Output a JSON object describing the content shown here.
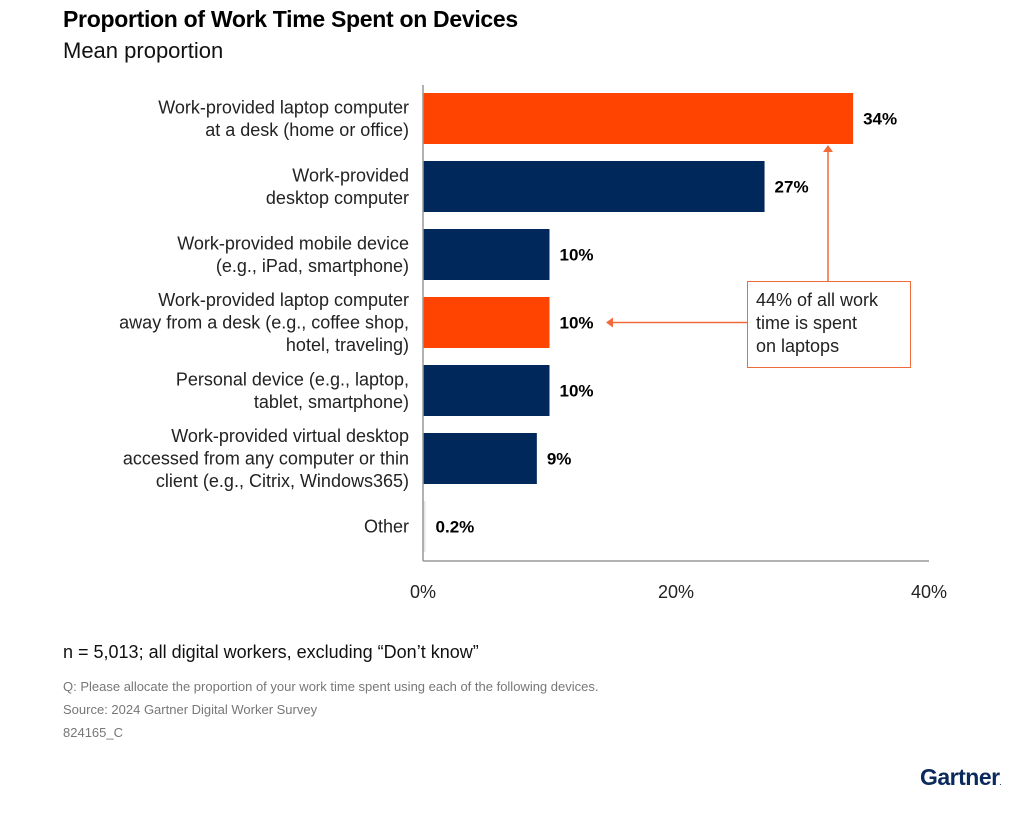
{
  "header": {
    "title": "Proportion of Work Time Spent on Devices",
    "subtitle": "Mean proportion"
  },
  "colors": {
    "highlight": "#ff4300",
    "primary": "#00285a",
    "other": "#e6e6e6",
    "annotation": "#f26a3a"
  },
  "chart_data": {
    "type": "bar",
    "orientation": "horizontal",
    "title": "Proportion of Work Time Spent on Devices",
    "subtitle": "Mean proportion",
    "xlabel": "",
    "ylabel": "",
    "xlim": [
      0,
      40
    ],
    "x_ticks": [
      "0%",
      "20%",
      "40%"
    ],
    "x_tick_values": [
      0,
      20,
      40
    ],
    "grid": false,
    "categories": [
      [
        "Work-provided laptop computer",
        "at a desk (home or office)"
      ],
      [
        "Work-provided",
        "desktop computer"
      ],
      [
        "Work-provided mobile device",
        "(e.g., iPad, smartphone)"
      ],
      [
        "Work-provided laptop computer",
        "away from a desk (e.g., coffee shop,",
        "hotel, traveling)"
      ],
      [
        "Personal device (e.g., laptop,",
        "tablet, smartphone)"
      ],
      [
        "Work-provided virtual desktop",
        "accessed from any computer or thin",
        "client (e.g., Citrix, Windows365)"
      ],
      [
        "Other"
      ]
    ],
    "values": [
      34,
      27,
      10,
      10,
      10,
      9,
      0.2
    ],
    "value_labels": [
      "34%",
      "27%",
      "10%",
      "10%",
      "10%",
      "9%",
      "0.2%"
    ],
    "highlighted": [
      true,
      false,
      false,
      true,
      false,
      false,
      false
    ],
    "annotation": {
      "text": "44% of all work time is spent on laptops",
      "lines": [
        "44% of all work",
        "time is spent",
        "on laptops"
      ],
      "points_to": [
        0,
        3
      ]
    }
  },
  "footer": {
    "note": "n = 5,013; all digital workers, excluding “Don’t know”",
    "question": "Q: Please allocate the proportion of your work time spent using each of the following devices.",
    "source": "Source: 2024 Gartner Digital Worker Survey",
    "id": "824165_C",
    "logo": "Gartner"
  }
}
